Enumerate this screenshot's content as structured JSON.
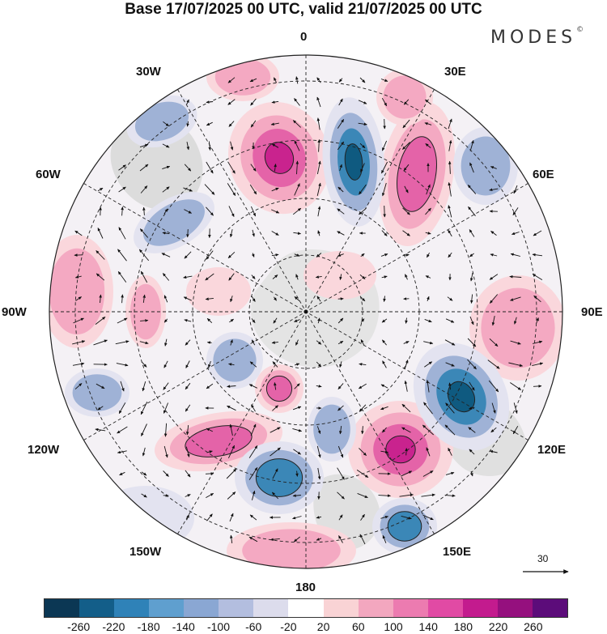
{
  "title": "Base 17/07/2025 00 UTC, valid 21/07/2025 00 UTC",
  "brand": "MODES",
  "brand_mark": "©",
  "map": {
    "projection": "south polar stereographic",
    "longitude_labels": {
      "top": "0",
      "top_right": "30E",
      "right_upper": "60E",
      "right": "90E",
      "right_lower": "120E",
      "bottom_right": "150E",
      "bottom": "180",
      "bottom_left": "150W",
      "left_lower": "120W",
      "left": "90W",
      "left_upper": "60W",
      "top_left": "30W"
    },
    "reference_vector_label": "30",
    "field_colors": {
      "positive_strong": "#c9238e",
      "positive_mid": "#e463a8",
      "positive_light": "#f4a9c2",
      "positive_faint": "#fad7dc",
      "negative_strong": "#0f5a80",
      "negative_mid": "#3b87b7",
      "negative_light": "#9fb2d6",
      "negative_faint": "#e3e3f0",
      "land": "#d9d9d9"
    }
  },
  "colorbar": {
    "labels": [
      "-260",
      "-220",
      "-180",
      "-140",
      "-100",
      "-60",
      "-20",
      "20",
      "60",
      "100",
      "140",
      "180",
      "220",
      "260"
    ],
    "colors": [
      "#0b3754",
      "#135e89",
      "#2f82b8",
      "#5f9fcf",
      "#8aa7d3",
      "#b3bedf",
      "#dcdcec",
      "#ffffff",
      "#f9d3d5",
      "#f3a7bf",
      "#ec7bb0",
      "#e14aa4",
      "#c31b8e",
      "#95107e",
      "#5c0c7a"
    ]
  }
}
